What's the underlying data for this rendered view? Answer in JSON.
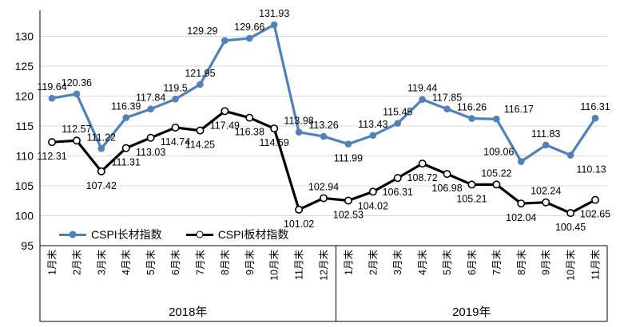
{
  "chart_data": {
    "type": "line",
    "title": "",
    "xlabel": "",
    "ylabel": "",
    "x_groups": [
      {
        "year_label": "2018年",
        "months": [
          "1月末",
          "2月末",
          "3月末",
          "4月末",
          "5月末",
          "6月末",
          "7月末",
          "8月末",
          "9月末",
          "10月末",
          "11月末",
          "12月末"
        ]
      },
      {
        "year_label": "2019年",
        "months": [
          "1月末",
          "2月末",
          "3月末",
          "4月末",
          "5月末",
          "6月末",
          "7月末",
          "8月末",
          "9月末",
          "10月末",
          "11月末"
        ]
      }
    ],
    "y_axis": {
      "min": 95,
      "max": 130,
      "tick_step": 5,
      "ticks": [
        95,
        100,
        105,
        110,
        115,
        120,
        125,
        130
      ]
    },
    "grid": {
      "horizontal": true,
      "color": "#d9d9d9"
    },
    "axis_color": "#000000",
    "background": "#ffffff",
    "legend_position": "inside-bottom-left",
    "series": [
      {
        "name": "CSPI长材指数",
        "color": "#4F81BD",
        "marker": "filled-circle",
        "values": [
          119.64,
          120.36,
          111.22,
          116.39,
          117.84,
          119.5,
          121.95,
          129.29,
          129.66,
          131.93,
          113.98,
          113.26,
          111.99,
          113.43,
          115.45,
          119.44,
          117.85,
          116.26,
          116.17,
          109.06,
          111.83,
          110.13,
          116.31
        ],
        "label_positions": [
          "above",
          "above",
          "above",
          "above",
          "above",
          "above",
          "above",
          "above-left",
          "above",
          "above",
          "above",
          "above",
          "below",
          "above",
          "above",
          "above",
          "above",
          "above",
          "above-right",
          "above-left",
          "above",
          "below-right",
          "above"
        ]
      },
      {
        "name": "CSPI板材指数",
        "color": "#000000",
        "marker": "open-circle",
        "values": [
          112.31,
          112.57,
          107.42,
          111.31,
          113.03,
          114.74,
          114.25,
          117.49,
          116.38,
          114.59,
          101.02,
          102.94,
          102.53,
          104.02,
          106.31,
          108.72,
          106.98,
          105.21,
          105.22,
          102.04,
          102.24,
          100.45,
          102.65
        ],
        "label_positions": [
          "below",
          "above",
          "below",
          "below",
          "below",
          "below",
          "below",
          "below",
          "below",
          "below",
          "below",
          "above",
          "below",
          "below",
          "below",
          "below",
          "below",
          "below",
          "above",
          "below",
          "above",
          "below",
          "below"
        ]
      }
    ]
  }
}
